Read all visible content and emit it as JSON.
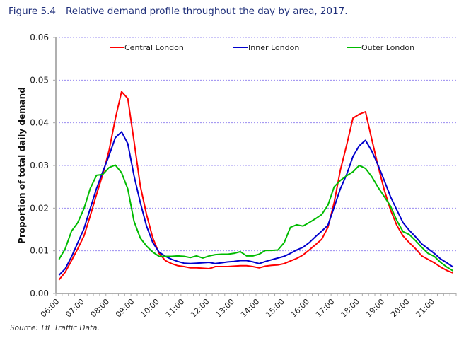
{
  "figure": {
    "number": "Figure 5.4",
    "title": "Relative demand profile throughout the day by area, 2017.",
    "source": "Source: TfL Traffic Data."
  },
  "chart_data": {
    "type": "line",
    "title": "Relative demand profile throughout the day by area, 2017.",
    "xlabel": "",
    "ylabel": "Proportion of total daily demand",
    "ylim": [
      0,
      0.06
    ],
    "yticks": [
      "0.00",
      "0.01",
      "0.02",
      "0.03",
      "0.04",
      "0.05",
      "0.06"
    ],
    "ytick_values": [
      0,
      0.01,
      0.02,
      0.03,
      0.04,
      0.05,
      0.06
    ],
    "xtick_labels": [
      "06:00",
      "07:00",
      "08:00",
      "09:00",
      "10:00",
      "11:00",
      "12:00",
      "13:00",
      "14:00",
      "15:00",
      "16:00",
      "17:00",
      "18:00",
      "19:00",
      "20:00",
      "21:00"
    ],
    "x_interval_minutes": 15,
    "x_start": "06:00",
    "n_bins": 64,
    "grid": "horizontal dashed",
    "legend_position": "top",
    "series": [
      {
        "name": "Central London",
        "color": "#ff0000",
        "values": [
          0.0032,
          0.005,
          0.0077,
          0.0105,
          0.0135,
          0.0182,
          0.0232,
          0.0279,
          0.0335,
          0.0409,
          0.0473,
          0.0457,
          0.0357,
          0.0252,
          0.0185,
          0.013,
          0.0094,
          0.0077,
          0.007,
          0.0065,
          0.0063,
          0.006,
          0.006,
          0.0059,
          0.0058,
          0.0063,
          0.0063,
          0.0063,
          0.0064,
          0.0065,
          0.0065,
          0.0063,
          0.006,
          0.0064,
          0.0066,
          0.0067,
          0.007,
          0.0076,
          0.0082,
          0.009,
          0.0102,
          0.0114,
          0.0127,
          0.0155,
          0.0213,
          0.029,
          0.0348,
          0.0411,
          0.042,
          0.0426,
          0.0362,
          0.0299,
          0.0243,
          0.0196,
          0.016,
          0.0135,
          0.0119,
          0.0105,
          0.0088,
          0.008,
          0.0072,
          0.0062,
          0.0054,
          0.0048
        ]
      },
      {
        "name": "Inner London",
        "color": "#0000cc",
        "values": [
          0.0043,
          0.0058,
          0.0086,
          0.0119,
          0.0152,
          0.0199,
          0.0246,
          0.0285,
          0.0323,
          0.0365,
          0.0379,
          0.0351,
          0.0276,
          0.0213,
          0.0158,
          0.0119,
          0.0097,
          0.0087,
          0.008,
          0.0075,
          0.0071,
          0.007,
          0.0071,
          0.0072,
          0.0073,
          0.007,
          0.0072,
          0.0074,
          0.0075,
          0.0077,
          0.0077,
          0.0074,
          0.007,
          0.0075,
          0.0079,
          0.0083,
          0.0087,
          0.0094,
          0.0102,
          0.0108,
          0.0119,
          0.0133,
          0.0146,
          0.016,
          0.0202,
          0.0246,
          0.0279,
          0.0321,
          0.0346,
          0.0359,
          0.0334,
          0.0301,
          0.0265,
          0.0227,
          0.0196,
          0.0166,
          0.0148,
          0.0133,
          0.0116,
          0.0105,
          0.0094,
          0.0081,
          0.0072,
          0.0062
        ]
      },
      {
        "name": "Outer London",
        "color": "#00bb00",
        "values": [
          0.008,
          0.0105,
          0.0146,
          0.0166,
          0.0199,
          0.0246,
          0.0277,
          0.0279,
          0.0295,
          0.0301,
          0.0283,
          0.0245,
          0.0169,
          0.013,
          0.0111,
          0.0097,
          0.0087,
          0.0087,
          0.0087,
          0.0088,
          0.0087,
          0.0084,
          0.0088,
          0.0083,
          0.0088,
          0.0091,
          0.0092,
          0.0092,
          0.0094,
          0.0098,
          0.0088,
          0.0088,
          0.0092,
          0.0101,
          0.0101,
          0.0102,
          0.0119,
          0.0155,
          0.0161,
          0.0158,
          0.0166,
          0.0175,
          0.0185,
          0.0207,
          0.025,
          0.0265,
          0.0276,
          0.0285,
          0.03,
          0.0293,
          0.0274,
          0.0249,
          0.0227,
          0.0205,
          0.0171,
          0.0145,
          0.0138,
          0.0124,
          0.0108,
          0.0094,
          0.0087,
          0.0073,
          0.0062,
          0.0053
        ]
      }
    ]
  }
}
